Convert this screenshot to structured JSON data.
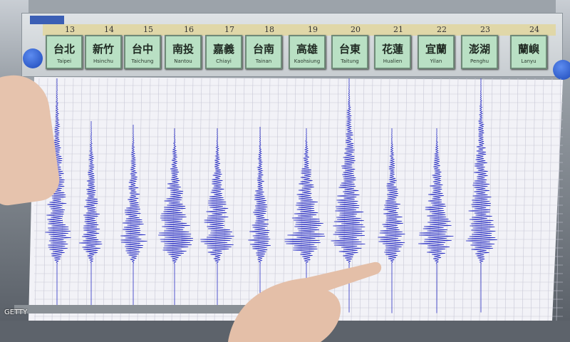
{
  "scale_numbers": [
    "13",
    "14",
    "15",
    "16",
    "17",
    "18",
    "19",
    "20",
    "21",
    "22",
    "23",
    "24"
  ],
  "stations": [
    {
      "zh": "台北",
      "en": "Taipei"
    },
    {
      "zh": "新竹",
      "en": "Hsinchu"
    },
    {
      "zh": "台中",
      "en": "Taichung"
    },
    {
      "zh": "南投",
      "en": "Nantou"
    },
    {
      "zh": "嘉義",
      "en": "Chiayi"
    },
    {
      "zh": "台南",
      "en": "Tainan"
    },
    {
      "zh": "高雄",
      "en": "Kaohsiung"
    },
    {
      "zh": "台東",
      "en": "Taitung"
    },
    {
      "zh": "花蓮",
      "en": "Hualien"
    },
    {
      "zh": "宜蘭",
      "en": "Yilan"
    },
    {
      "zh": "澎湖",
      "en": "Penghu"
    },
    {
      "zh": "蘭嶼",
      "en": "Lanyu"
    }
  ],
  "colors": {
    "trace": "#2a2fc4",
    "tile": "#b9e0c4",
    "paper": "#f4f4f8",
    "grid": "#c8c8d6"
  },
  "credit": "GETTY"
}
